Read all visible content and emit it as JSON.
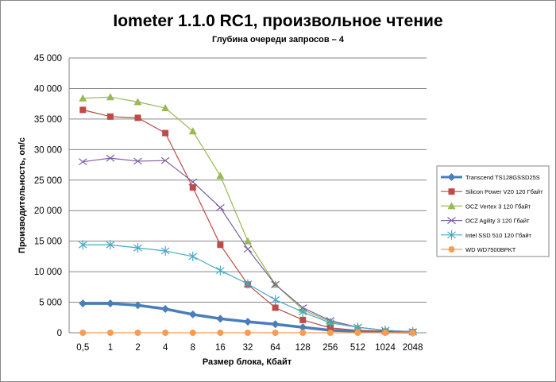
{
  "chart_data": {
    "type": "line",
    "title": "Iometer 1.1.0 RC1, произвольное чтение",
    "subtitle": "Глубина очереди запросов – 4",
    "xlabel": "Размер блока, Кбайт",
    "ylabel": "Производительность, оп/с",
    "ylim": [
      0,
      45000
    ],
    "yticks": [
      0,
      5000,
      10000,
      15000,
      20000,
      25000,
      30000,
      35000,
      40000,
      45000
    ],
    "ytick_labels": [
      "0",
      "5 000",
      "10 000",
      "15 000",
      "20 000",
      "25 000",
      "30 000",
      "35 000",
      "40 000",
      "45 000"
    ],
    "categories": [
      "0,5",
      "1",
      "2",
      "4",
      "8",
      "16",
      "32",
      "64",
      "128",
      "256",
      "512",
      "1024",
      "2048"
    ],
    "grid": true,
    "legend": "right",
    "series": [
      {
        "name": "Transcend TS128GSSD25S",
        "color": "#4a7ebb",
        "marker": "diamond",
        "values": [
          4800,
          4800,
          4500,
          3900,
          3000,
          2300,
          1800,
          1400,
          900,
          400,
          250,
          150,
          100
        ]
      },
      {
        "name": "Silicon Power V20 120 Гбайт",
        "color": "#be4b48",
        "marker": "square",
        "values": [
          36500,
          35400,
          35200,
          32700,
          23800,
          14400,
          7900,
          4100,
          2100,
          800,
          400,
          200,
          100
        ]
      },
      {
        "name": "OCZ Vertex 3 120 Гбайт",
        "color": "#98b954",
        "marker": "triangle",
        "values": [
          38400,
          38600,
          37800,
          36800,
          33000,
          25700,
          15000,
          7900,
          3800,
          1800,
          900,
          400,
          150
        ]
      },
      {
        "name": "OCZ Agility 3 120 Гбайт",
        "color": "#7d60a0",
        "marker": "x",
        "values": [
          28000,
          28600,
          28100,
          28200,
          24700,
          20500,
          13700,
          7900,
          4100,
          2000,
          900,
          400,
          150
        ]
      },
      {
        "name": "Intel SSD 510 120 Гбайт",
        "color": "#46aac5",
        "marker": "star",
        "values": [
          14400,
          14400,
          13900,
          13400,
          12500,
          10200,
          8000,
          5400,
          3400,
          1600,
          900,
          400,
          150
        ]
      },
      {
        "name": "WD WD7500BPKT",
        "color": "#f59d56",
        "marker": "circle",
        "values": [
          0,
          0,
          0,
          0,
          0,
          0,
          0,
          0,
          0,
          0,
          0,
          0,
          0
        ]
      }
    ]
  }
}
